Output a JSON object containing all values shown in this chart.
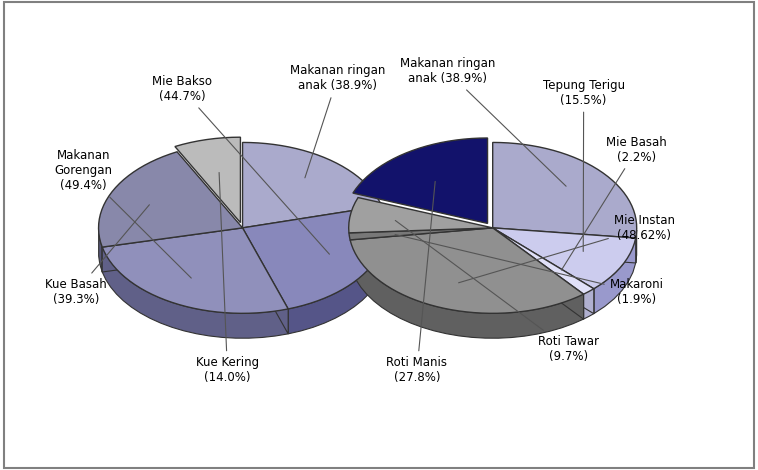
{
  "left_pie": {
    "labels": [
      "Makanan ringan\nanak (38.9%)",
      "Mie Bakso\n(44.7%)",
      "Makanan\nGorengan\n(49.4%)",
      "Kue Basah\n(39.3%)",
      "Kue Kering\n(14.0%)"
    ],
    "values": [
      38.9,
      44.7,
      49.4,
      39.3,
      14.0
    ],
    "colors": [
      "#aaaacc",
      "#8888bb",
      "#9090bb",
      "#8888aa",
      "#bbbbbb"
    ],
    "dark_colors": [
      "#7777aa",
      "#555588",
      "#606088",
      "#555577",
      "#888888"
    ],
    "explode_angles": [
      335,
      50,
      140,
      230,
      300
    ],
    "startangle": 90
  },
  "right_pie": {
    "labels": [
      "Makanan ringan\nanak (38.9%)",
      "Tepung Terigu\n(15.5%)",
      "Mie Basah\n(2.2%)",
      "Mie Instan\n(48.62%)",
      "Makaroni\n(1.9%)",
      "Roti Tawar\n(9.7%)",
      "Roti Manis\n(27.8%)"
    ],
    "values": [
      38.9,
      15.5,
      2.2,
      48.62,
      1.9,
      9.7,
      27.8
    ],
    "colors": [
      "#aaaacc",
      "#ccccee",
      "#e0e0f8",
      "#909090",
      "#787878",
      "#a0a0a0",
      "#12126b"
    ],
    "dark_colors": [
      "#7777aa",
      "#9999cc",
      "#b0b0d0",
      "#606060",
      "#484848",
      "#707070",
      "#080840"
    ],
    "explode_angles": [
      335,
      50,
      80,
      200,
      270,
      310,
      250
    ],
    "startangle": 90
  },
  "background_color": "#ffffff",
  "border_color": "#808080",
  "label_fontsize": 8.5,
  "figsize": [
    7.58,
    4.7
  ],
  "dpi": 100
}
